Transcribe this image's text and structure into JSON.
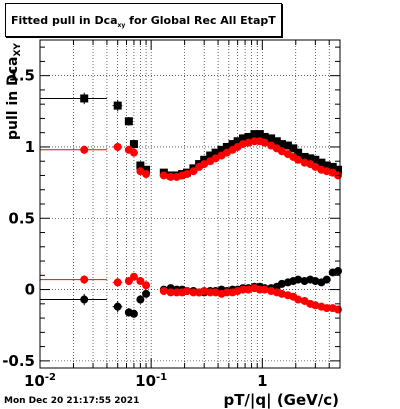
{
  "title": {
    "main": "Fitted pull in Dca",
    "sub": "xy",
    "rest": " for Global Rec All EtapT"
  },
  "datestamp": "Mon Dec 20 21:17:55 2021",
  "chart_data": {
    "type": "scatter",
    "xscale": "log",
    "xlim": [
      0.01,
      5.0
    ],
    "ylim": [
      -0.55,
      1.75
    ],
    "xlabel": "pT/|q| (GeV/c)",
    "ylabel": "pull in Dca",
    "ylabel_sub": "XY",
    "xticks": [
      {
        "v": 0.01,
        "label": "10",
        "exp": "-2"
      },
      {
        "v": 0.1,
        "label": "10",
        "exp": "-1"
      },
      {
        "v": 1,
        "label": "1",
        "exp": ""
      }
    ],
    "yticks": [
      {
        "v": -0.5,
        "label": "-0.5"
      },
      {
        "v": 0,
        "label": "0"
      },
      {
        "v": 0.5,
        "label": "0.5"
      },
      {
        "v": 1,
        "label": "1"
      },
      {
        "v": 1.5,
        "label": "1.5"
      }
    ],
    "grid": true,
    "colors": {
      "black": "#000000",
      "red": "#ff0000"
    },
    "series": [
      {
        "color": "#000000",
        "points": [
          [
            0.025,
            1.34,
            0.015,
            0.04
          ],
          [
            0.05,
            1.29,
            0.005,
            0.04
          ],
          [
            0.063,
            1.18,
            0.004,
            0.03
          ],
          [
            0.07,
            1.02,
            0.003,
            0.03
          ],
          [
            0.08,
            0.87,
            0.003,
            0.03
          ],
          [
            0.09,
            0.84,
            0.003,
            0.02
          ],
          [
            0.13,
            0.82,
            0.005,
            0.02
          ],
          [
            0.15,
            0.8,
            0.005,
            0.02
          ],
          [
            0.17,
            0.8,
            0.006,
            0.02
          ],
          [
            0.19,
            0.81,
            0.006,
            0.02
          ],
          [
            0.21,
            0.82,
            0.007,
            0.02
          ],
          [
            0.24,
            0.85,
            0.008,
            0.02
          ],
          [
            0.27,
            0.88,
            0.009,
            0.02
          ],
          [
            0.3,
            0.91,
            0.01,
            0.02
          ],
          [
            0.34,
            0.94,
            0.011,
            0.02
          ],
          [
            0.38,
            0.96,
            0.012,
            0.02
          ],
          [
            0.43,
            0.98,
            0.013,
            0.02
          ],
          [
            0.48,
            1.0,
            0.015,
            0.02
          ],
          [
            0.54,
            1.02,
            0.017,
            0.02
          ],
          [
            0.6,
            1.04,
            0.019,
            0.02
          ],
          [
            0.67,
            1.06,
            0.021,
            0.02
          ],
          [
            0.75,
            1.07,
            0.023,
            0.02
          ],
          [
            0.85,
            1.09,
            0.026,
            0.02
          ],
          [
            0.95,
            1.09,
            0.03,
            0.02
          ],
          [
            1.05,
            1.07,
            0.033,
            0.02
          ],
          [
            1.2,
            1.06,
            0.037,
            0.02
          ],
          [
            1.35,
            1.04,
            0.04,
            0.02
          ],
          [
            1.5,
            1.02,
            0.045,
            0.02
          ],
          [
            1.7,
            1.01,
            0.05,
            0.02
          ],
          [
            1.9,
            0.99,
            0.06,
            0.02
          ],
          [
            2.1,
            0.96,
            0.065,
            0.02
          ],
          [
            2.4,
            0.93,
            0.075,
            0.02
          ],
          [
            2.7,
            0.92,
            0.08,
            0.02
          ],
          [
            3.0,
            0.91,
            0.09,
            0.02
          ],
          [
            3.4,
            0.89,
            0.1,
            0.02
          ],
          [
            3.8,
            0.87,
            0.11,
            0.02
          ],
          [
            4.3,
            0.86,
            0.12,
            0.02
          ],
          [
            4.8,
            0.84,
            0.12,
            0.02
          ]
        ]
      },
      {
        "color": "#ff0000",
        "points": [
          [
            0.025,
            0.98,
            0.015,
            0.03
          ],
          [
            0.05,
            1.0,
            0.005,
            0.03
          ],
          [
            0.063,
            0.98,
            0.004,
            0.02
          ],
          [
            0.07,
            0.96,
            0.003,
            0.02
          ],
          [
            0.08,
            0.83,
            0.003,
            0.02
          ],
          [
            0.09,
            0.81,
            0.003,
            0.02
          ],
          [
            0.13,
            0.8,
            0.005,
            0.02
          ],
          [
            0.15,
            0.79,
            0.005,
            0.02
          ],
          [
            0.17,
            0.79,
            0.006,
            0.02
          ],
          [
            0.19,
            0.8,
            0.006,
            0.02
          ],
          [
            0.21,
            0.81,
            0.007,
            0.02
          ],
          [
            0.24,
            0.83,
            0.008,
            0.02
          ],
          [
            0.27,
            0.86,
            0.009,
            0.02
          ],
          [
            0.3,
            0.88,
            0.01,
            0.02
          ],
          [
            0.34,
            0.9,
            0.011,
            0.02
          ],
          [
            0.38,
            0.92,
            0.012,
            0.02
          ],
          [
            0.43,
            0.94,
            0.013,
            0.02
          ],
          [
            0.48,
            0.96,
            0.015,
            0.02
          ],
          [
            0.54,
            0.98,
            0.017,
            0.02
          ],
          [
            0.6,
            1.0,
            0.019,
            0.02
          ],
          [
            0.67,
            1.02,
            0.021,
            0.02
          ],
          [
            0.75,
            1.03,
            0.023,
            0.02
          ],
          [
            0.85,
            1.04,
            0.026,
            0.02
          ],
          [
            0.95,
            1.04,
            0.03,
            0.02
          ],
          [
            1.05,
            1.03,
            0.033,
            0.02
          ],
          [
            1.2,
            1.01,
            0.037,
            0.02
          ],
          [
            1.35,
            0.99,
            0.04,
            0.02
          ],
          [
            1.5,
            0.97,
            0.045,
            0.02
          ],
          [
            1.7,
            0.95,
            0.05,
            0.02
          ],
          [
            1.9,
            0.93,
            0.06,
            0.02
          ],
          [
            2.1,
            0.91,
            0.065,
            0.02
          ],
          [
            2.4,
            0.89,
            0.075,
            0.02
          ],
          [
            2.7,
            0.88,
            0.08,
            0.02
          ],
          [
            3.0,
            0.86,
            0.09,
            0.02
          ],
          [
            3.4,
            0.84,
            0.1,
            0.02
          ],
          [
            3.8,
            0.83,
            0.11,
            0.02
          ],
          [
            4.3,
            0.82,
            0.12,
            0.02
          ],
          [
            4.8,
            0.8,
            0.12,
            0.02
          ]
        ]
      },
      {
        "color": "#000000",
        "points": [
          [
            0.025,
            -0.07,
            0.015,
            0.04
          ],
          [
            0.05,
            -0.12,
            0.005,
            0.04
          ],
          [
            0.063,
            -0.16,
            0.004,
            0.03
          ],
          [
            0.07,
            -0.17,
            0.003,
            0.03
          ],
          [
            0.08,
            -0.07,
            0.003,
            0.03
          ],
          [
            0.09,
            -0.03,
            0.003,
            0.02
          ],
          [
            0.13,
            0.0,
            0.005,
            0.02
          ],
          [
            0.15,
            0.01,
            0.005,
            0.02
          ],
          [
            0.17,
            0.0,
            0.006,
            0.02
          ],
          [
            0.19,
            0.0,
            0.006,
            0.02
          ],
          [
            0.21,
            -0.01,
            0.007,
            0.02
          ],
          [
            0.24,
            -0.01,
            0.008,
            0.02
          ],
          [
            0.27,
            -0.02,
            0.009,
            0.02
          ],
          [
            0.3,
            -0.02,
            0.01,
            0.02
          ],
          [
            0.34,
            -0.01,
            0.011,
            0.02
          ],
          [
            0.38,
            -0.01,
            0.012,
            0.02
          ],
          [
            0.43,
            0.0,
            0.013,
            0.02
          ],
          [
            0.48,
            -0.01,
            0.015,
            0.02
          ],
          [
            0.54,
            0.0,
            0.017,
            0.02
          ],
          [
            0.6,
            0.0,
            0.019,
            0.02
          ],
          [
            0.67,
            0.01,
            0.021,
            0.02
          ],
          [
            0.75,
            0.01,
            0.023,
            0.02
          ],
          [
            0.85,
            0.02,
            0.026,
            0.02
          ],
          [
            0.95,
            0.02,
            0.03,
            0.02
          ],
          [
            1.05,
            0.01,
            0.033,
            0.02
          ],
          [
            1.2,
            0.01,
            0.037,
            0.02
          ],
          [
            1.35,
            0.02,
            0.04,
            0.02
          ],
          [
            1.5,
            0.04,
            0.045,
            0.02
          ],
          [
            1.7,
            0.05,
            0.05,
            0.02
          ],
          [
            1.9,
            0.06,
            0.06,
            0.02
          ],
          [
            2.1,
            0.07,
            0.065,
            0.02
          ],
          [
            2.4,
            0.06,
            0.075,
            0.02
          ],
          [
            2.7,
            0.07,
            0.08,
            0.02
          ],
          [
            3.0,
            0.06,
            0.09,
            0.02
          ],
          [
            3.4,
            0.05,
            0.1,
            0.02
          ],
          [
            3.8,
            0.07,
            0.11,
            0.02
          ],
          [
            4.3,
            0.12,
            0.12,
            0.02
          ],
          [
            4.8,
            0.13,
            0.12,
            0.02
          ]
        ]
      },
      {
        "color": "#ff0000",
        "points": [
          [
            0.025,
            0.07,
            0.015,
            0.03
          ],
          [
            0.05,
            0.05,
            0.005,
            0.03
          ],
          [
            0.063,
            0.06,
            0.004,
            0.02
          ],
          [
            0.07,
            0.09,
            0.003,
            0.02
          ],
          [
            0.08,
            0.06,
            0.003,
            0.02
          ],
          [
            0.09,
            0.03,
            0.003,
            0.02
          ],
          [
            0.13,
            -0.01,
            0.005,
            0.02
          ],
          [
            0.15,
            -0.02,
            0.005,
            0.02
          ],
          [
            0.17,
            -0.02,
            0.006,
            0.02
          ],
          [
            0.19,
            -0.02,
            0.006,
            0.02
          ],
          [
            0.21,
            -0.01,
            0.007,
            0.02
          ],
          [
            0.24,
            -0.02,
            0.008,
            0.02
          ],
          [
            0.27,
            -0.02,
            0.009,
            0.02
          ],
          [
            0.3,
            -0.01,
            0.01,
            0.02
          ],
          [
            0.34,
            -0.02,
            0.011,
            0.02
          ],
          [
            0.38,
            -0.02,
            0.012,
            0.02
          ],
          [
            0.43,
            -0.03,
            0.013,
            0.02
          ],
          [
            0.48,
            -0.02,
            0.015,
            0.02
          ],
          [
            0.54,
            -0.02,
            0.017,
            0.02
          ],
          [
            0.6,
            -0.01,
            0.019,
            0.02
          ],
          [
            0.67,
            0.0,
            0.021,
            0.02
          ],
          [
            0.75,
            0.0,
            0.023,
            0.02
          ],
          [
            0.85,
            0.01,
            0.026,
            0.02
          ],
          [
            0.95,
            0.0,
            0.03,
            0.02
          ],
          [
            1.05,
            0.0,
            0.033,
            0.02
          ],
          [
            1.2,
            -0.01,
            0.037,
            0.02
          ],
          [
            1.35,
            -0.02,
            0.04,
            0.02
          ],
          [
            1.5,
            -0.03,
            0.045,
            0.02
          ],
          [
            1.7,
            -0.04,
            0.05,
            0.02
          ],
          [
            1.9,
            -0.05,
            0.06,
            0.02
          ],
          [
            2.1,
            -0.07,
            0.065,
            0.02
          ],
          [
            2.4,
            -0.08,
            0.075,
            0.02
          ],
          [
            2.7,
            -0.1,
            0.08,
            0.02
          ],
          [
            3.0,
            -0.11,
            0.09,
            0.02
          ],
          [
            3.4,
            -0.12,
            0.1,
            0.02
          ],
          [
            3.8,
            -0.13,
            0.11,
            0.02
          ],
          [
            4.3,
            -0.13,
            0.12,
            0.02
          ],
          [
            4.8,
            -0.14,
            0.12,
            0.02
          ]
        ]
      }
    ]
  }
}
